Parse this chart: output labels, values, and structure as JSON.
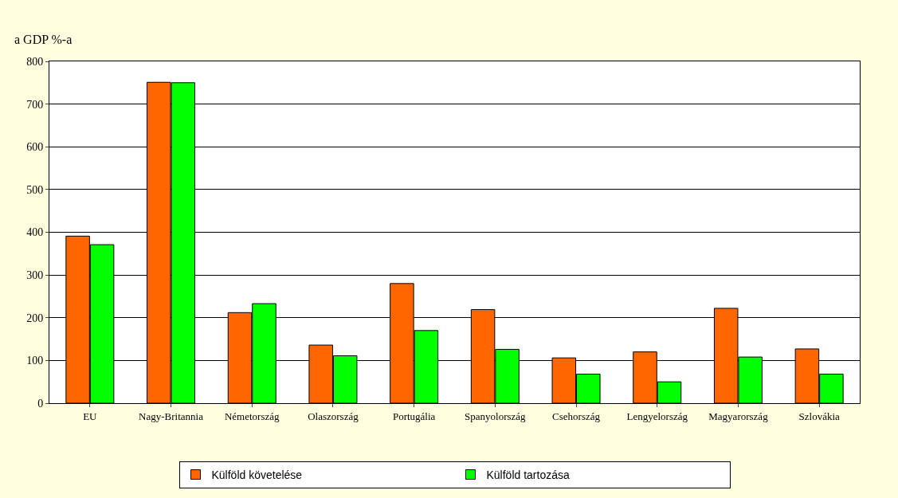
{
  "chart_data": {
    "type": "bar",
    "ylabel": "a GDP %-a",
    "categories": [
      "EU",
      "Nagy-Britannia",
      "Németország",
      "Olaszország",
      "Portugália",
      "Spanyolország",
      "Csehország",
      "Lengyelország",
      "Magyarország",
      "Szlovákia"
    ],
    "series": [
      {
        "name": "Külföld követelése",
        "color": "#ff6600",
        "values": [
          391,
          751,
          212,
          136,
          280,
          219,
          106,
          120,
          222,
          127
        ]
      },
      {
        "name": "Külföld tartozása",
        "color": "#00ff00",
        "values": [
          371,
          750,
          233,
          111,
          170,
          126,
          68,
          50,
          108,
          68
        ]
      }
    ],
    "ylim": [
      0,
      800
    ],
    "yticks": [
      0,
      100,
      200,
      300,
      400,
      500,
      600,
      700,
      800
    ],
    "grid": "y",
    "legend": "bottom"
  }
}
